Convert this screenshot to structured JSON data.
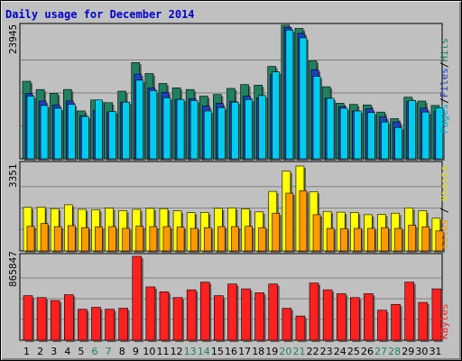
{
  "chart_data": [
    {
      "type": "bar",
      "title": "Daily usage for December 2014",
      "max_label": "23945",
      "legend": [
        "Pages",
        "Files",
        "Hits"
      ],
      "colors": {
        "pages": "#00ccee",
        "files": "#2040c0",
        "hits": "#208060"
      },
      "ylim": [
        0,
        23945
      ],
      "categories": [
        "1",
        "2",
        "3",
        "4",
        "5",
        "6",
        "7",
        "8",
        "9",
        "10",
        "11",
        "12",
        "13",
        "14",
        "15",
        "16",
        "17",
        "18",
        "19",
        "20",
        "21",
        "22",
        "23",
        "24",
        "25",
        "26",
        "27",
        "28",
        "29",
        "30",
        "31"
      ],
      "weekend_days": [
        "6",
        "7",
        "13",
        "14",
        "20",
        "21",
        "27",
        "28"
      ],
      "series": [
        {
          "name": "Hits",
          "values": [
            14100,
            12600,
            11900,
            12600,
            8700,
            10700,
            10200,
            12300,
            17500,
            15500,
            13700,
            12900,
            12600,
            11400,
            11700,
            12800,
            13500,
            13400,
            16800,
            24300,
            23700,
            17800,
            13100,
            10100,
            9900,
            9800,
            8500,
            7300,
            11200,
            10500,
            9700
          ]
        },
        {
          "name": "Files",
          "values": [
            11900,
            10500,
            9800,
            10500,
            7800,
            8800,
            8500,
            10300,
            15400,
            12900,
            12100,
            10800,
            10900,
            9600,
            10100,
            10400,
            11400,
            11100,
            15300,
            23900,
            22800,
            16200,
            11000,
            9500,
            8700,
            9100,
            7600,
            6700,
            10400,
            9200,
            8600
          ]
        },
        {
          "name": "Pages",
          "values": [
            11400,
            9700,
            9200,
            9900,
            7700,
            10700,
            8600,
            10300,
            14300,
            12400,
            11100,
            10800,
            10600,
            8700,
            9300,
            10300,
            10800,
            11500,
            15800,
            23400,
            22000,
            15000,
            11000,
            9200,
            8700,
            8400,
            6700,
            5700,
            10600,
            8500,
            9300
          ]
        }
      ]
    },
    {
      "type": "bar",
      "max_label": "3351",
      "legend": [
        "Sites",
        "Visits"
      ],
      "colors": {
        "visits": "#ffff00",
        "sites": "#ff9900"
      },
      "ylim": [
        0,
        3351
      ],
      "categories": [
        "1",
        "2",
        "3",
        "4",
        "5",
        "6",
        "7",
        "8",
        "9",
        "10",
        "11",
        "12",
        "13",
        "14",
        "15",
        "16",
        "17",
        "18",
        "19",
        "20",
        "21",
        "22",
        "23",
        "24",
        "25",
        "26",
        "27",
        "28",
        "29",
        "30",
        "31"
      ],
      "series": [
        {
          "name": "Visits",
          "values": [
            1720,
            1730,
            1670,
            1820,
            1640,
            1630,
            1690,
            1590,
            1640,
            1680,
            1670,
            1580,
            1510,
            1520,
            1680,
            1700,
            1660,
            1540,
            2350,
            3150,
            3351,
            2340,
            1560,
            1530,
            1520,
            1430,
            1440,
            1490,
            1700,
            1580,
            1290
          ]
        },
        {
          "name": "Sites",
          "values": [
            970,
            1080,
            960,
            1000,
            920,
            950,
            960,
            890,
            980,
            960,
            960,
            940,
            890,
            920,
            960,
            960,
            970,
            920,
            1490,
            2280,
            2380,
            1430,
            890,
            880,
            890,
            890,
            920,
            890,
            1020,
            950,
            790
          ]
        }
      ]
    },
    {
      "type": "bar",
      "max_label": "865847",
      "legend": [
        "KBytes"
      ],
      "colors": {
        "kbytes": "#ff2020"
      },
      "ylim": [
        0,
        865847
      ],
      "categories": [
        "1",
        "2",
        "3",
        "4",
        "5",
        "6",
        "7",
        "8",
        "9",
        "10",
        "11",
        "12",
        "13",
        "14",
        "15",
        "16",
        "17",
        "18",
        "19",
        "20",
        "21",
        "22",
        "23",
        "24",
        "25",
        "26",
        "27",
        "28",
        "29",
        "30",
        "31"
      ],
      "series": [
        {
          "name": "KBytes",
          "values": [
            460000,
            440000,
            410000,
            470000,
            320000,
            340000,
            320000,
            330000,
            865847,
            550000,
            500000,
            440000,
            520000,
            600000,
            460000,
            580000,
            530000,
            490000,
            580000,
            330000,
            250000,
            590000,
            520000,
            480000,
            440000,
            480000,
            310000,
            370000,
            600000,
            390000,
            530000
          ]
        }
      ]
    }
  ]
}
